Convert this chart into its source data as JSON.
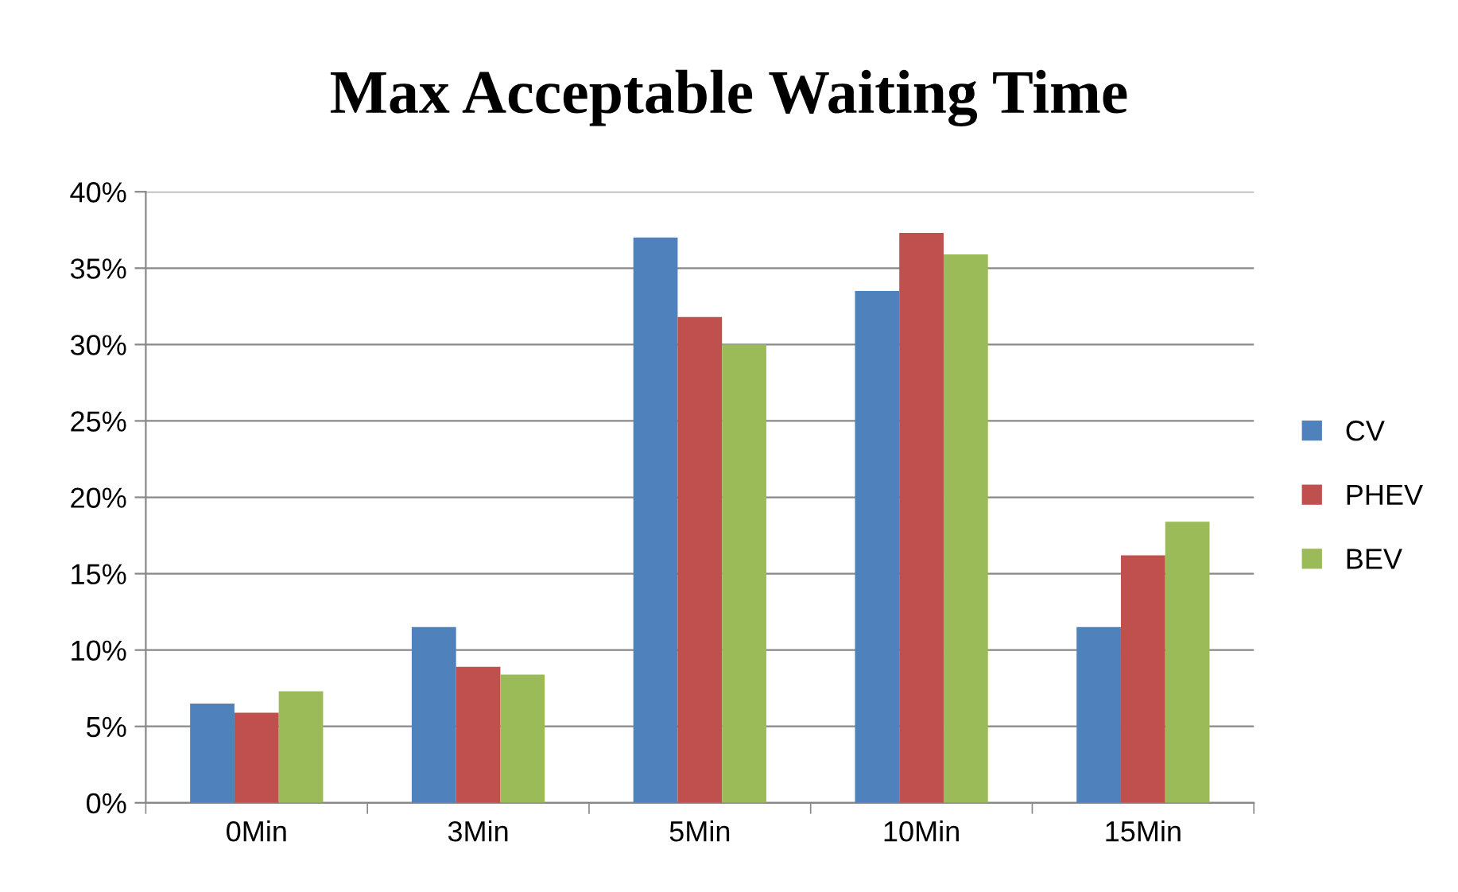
{
  "chart_data": {
    "type": "bar",
    "title": "Max Acceptable Waiting Time",
    "categories": [
      "0Min",
      "3Min",
      "5Min",
      "10Min",
      "15Min"
    ],
    "series": [
      {
        "name": "CV",
        "color": "#4f81bd",
        "values": [
          6.5,
          11.5,
          37.0,
          33.5,
          11.5
        ]
      },
      {
        "name": "PHEV",
        "color": "#c0504d",
        "values": [
          5.9,
          8.9,
          31.8,
          37.3,
          16.2
        ]
      },
      {
        "name": "BEV",
        "color": "#9bbb59",
        "values": [
          7.3,
          8.4,
          30.0,
          35.9,
          18.4
        ]
      }
    ],
    "ylim": [
      0,
      40
    ],
    "yticks": [
      {
        "value": 0,
        "label": "0%"
      },
      {
        "value": 5,
        "label": "5%"
      },
      {
        "value": 10,
        "label": "10%"
      },
      {
        "value": 15,
        "label": "15%"
      },
      {
        "value": 20,
        "label": "20%"
      },
      {
        "value": 25,
        "label": "25%"
      },
      {
        "value": 30,
        "label": "30%"
      },
      {
        "value": 35,
        "label": "35%"
      },
      {
        "value": 40,
        "label": "40%"
      }
    ],
    "grid": "y",
    "legend": "right"
  }
}
